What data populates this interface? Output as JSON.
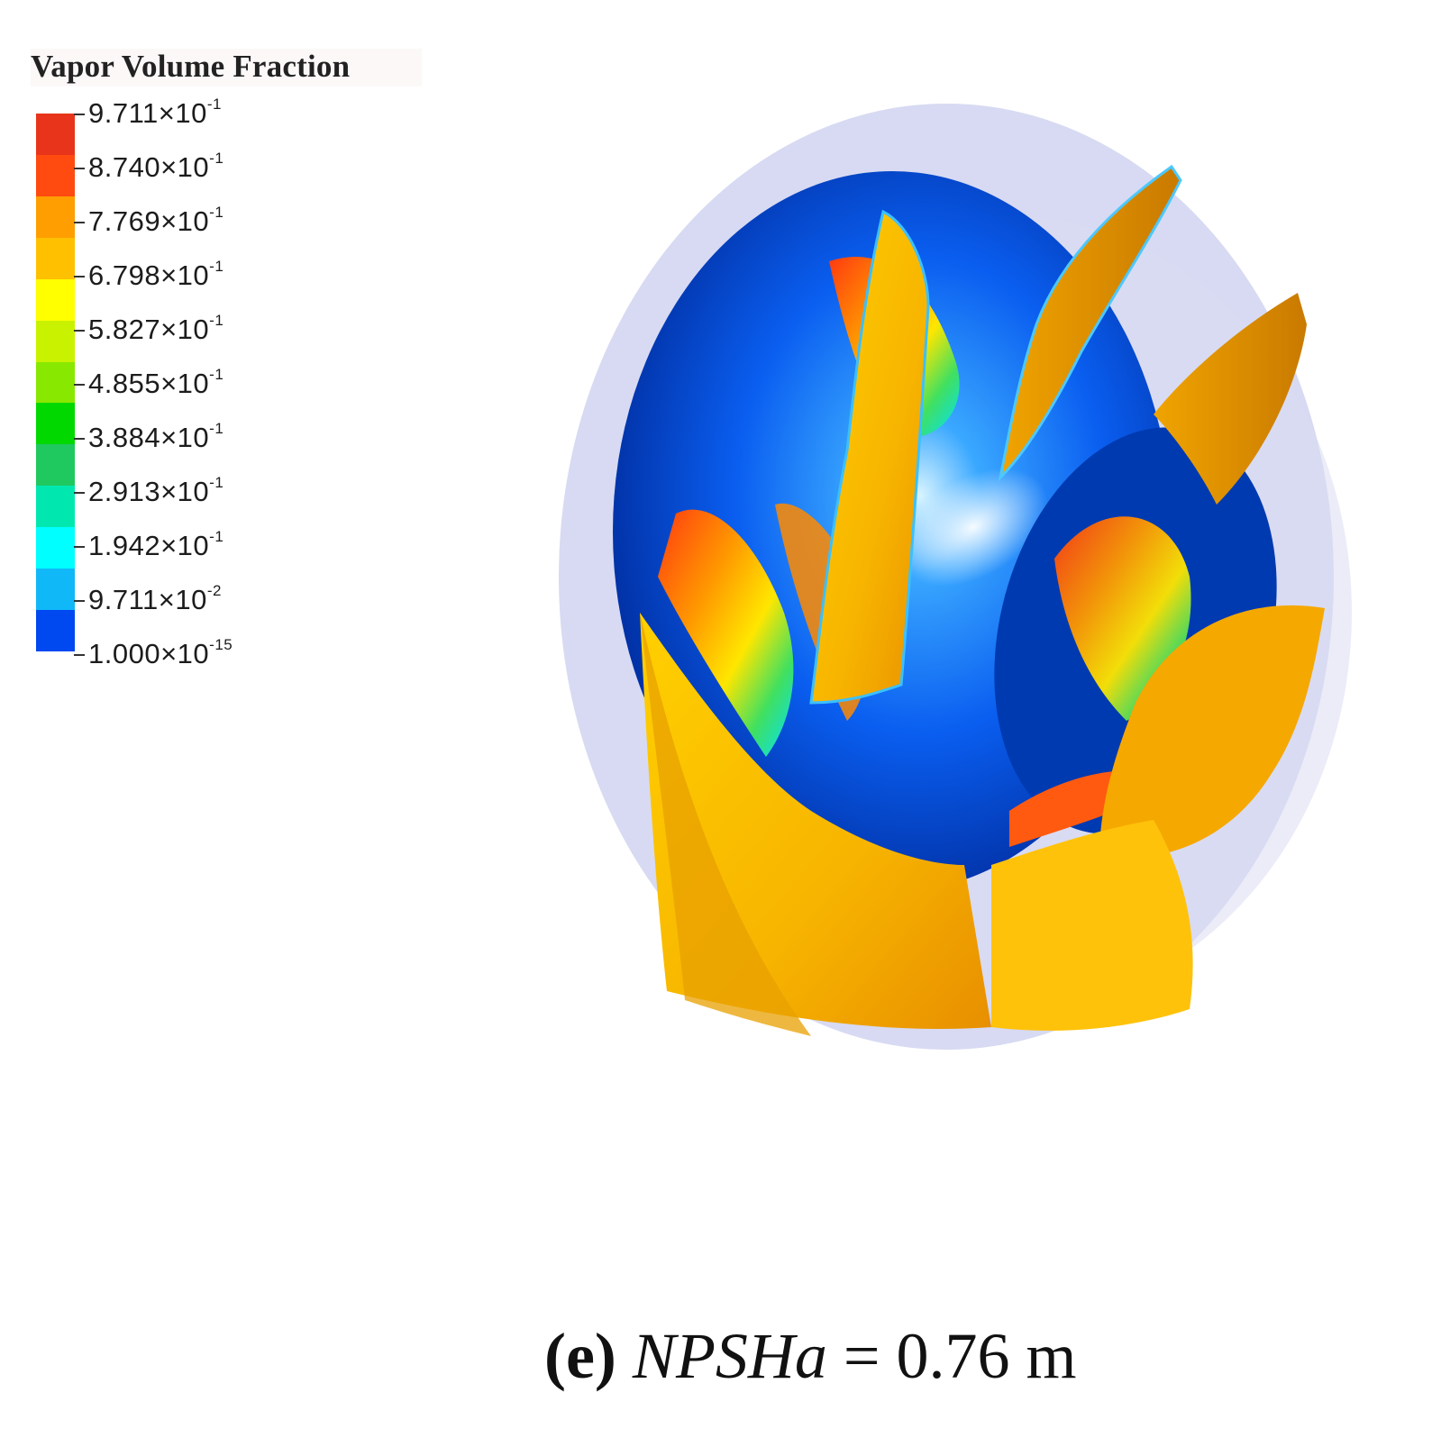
{
  "legend": {
    "title": "Vapor Volume Fraction",
    "ticks": [
      {
        "mantissa": "9.711×10",
        "exp": "-1"
      },
      {
        "mantissa": "8.740×10",
        "exp": "-1"
      },
      {
        "mantissa": "7.769×10",
        "exp": "-1"
      },
      {
        "mantissa": "6.798×10",
        "exp": "-1"
      },
      {
        "mantissa": "5.827×10",
        "exp": "-1"
      },
      {
        "mantissa": "4.855×10",
        "exp": "-1"
      },
      {
        "mantissa": "3.884×10",
        "exp": "-1"
      },
      {
        "mantissa": "2.913×10",
        "exp": "-1"
      },
      {
        "mantissa": "1.942×10",
        "exp": "-1"
      },
      {
        "mantissa": "9.711×10",
        "exp": "-2"
      },
      {
        "mantissa": "1.000×10",
        "exp": "-15"
      }
    ],
    "band_colors": [
      "#e8341a",
      "#ff4a10",
      "#ff9e00",
      "#ffc000",
      "#ffff00",
      "#c8f200",
      "#88e800",
      "#00d800",
      "#20c860",
      "#00e8b0",
      "#00ffff",
      "#10b8f8",
      "#0048f0"
    ]
  },
  "caption": {
    "panel": "(e)",
    "variable": "NPSHa",
    "value": " = 0.76 m"
  }
}
